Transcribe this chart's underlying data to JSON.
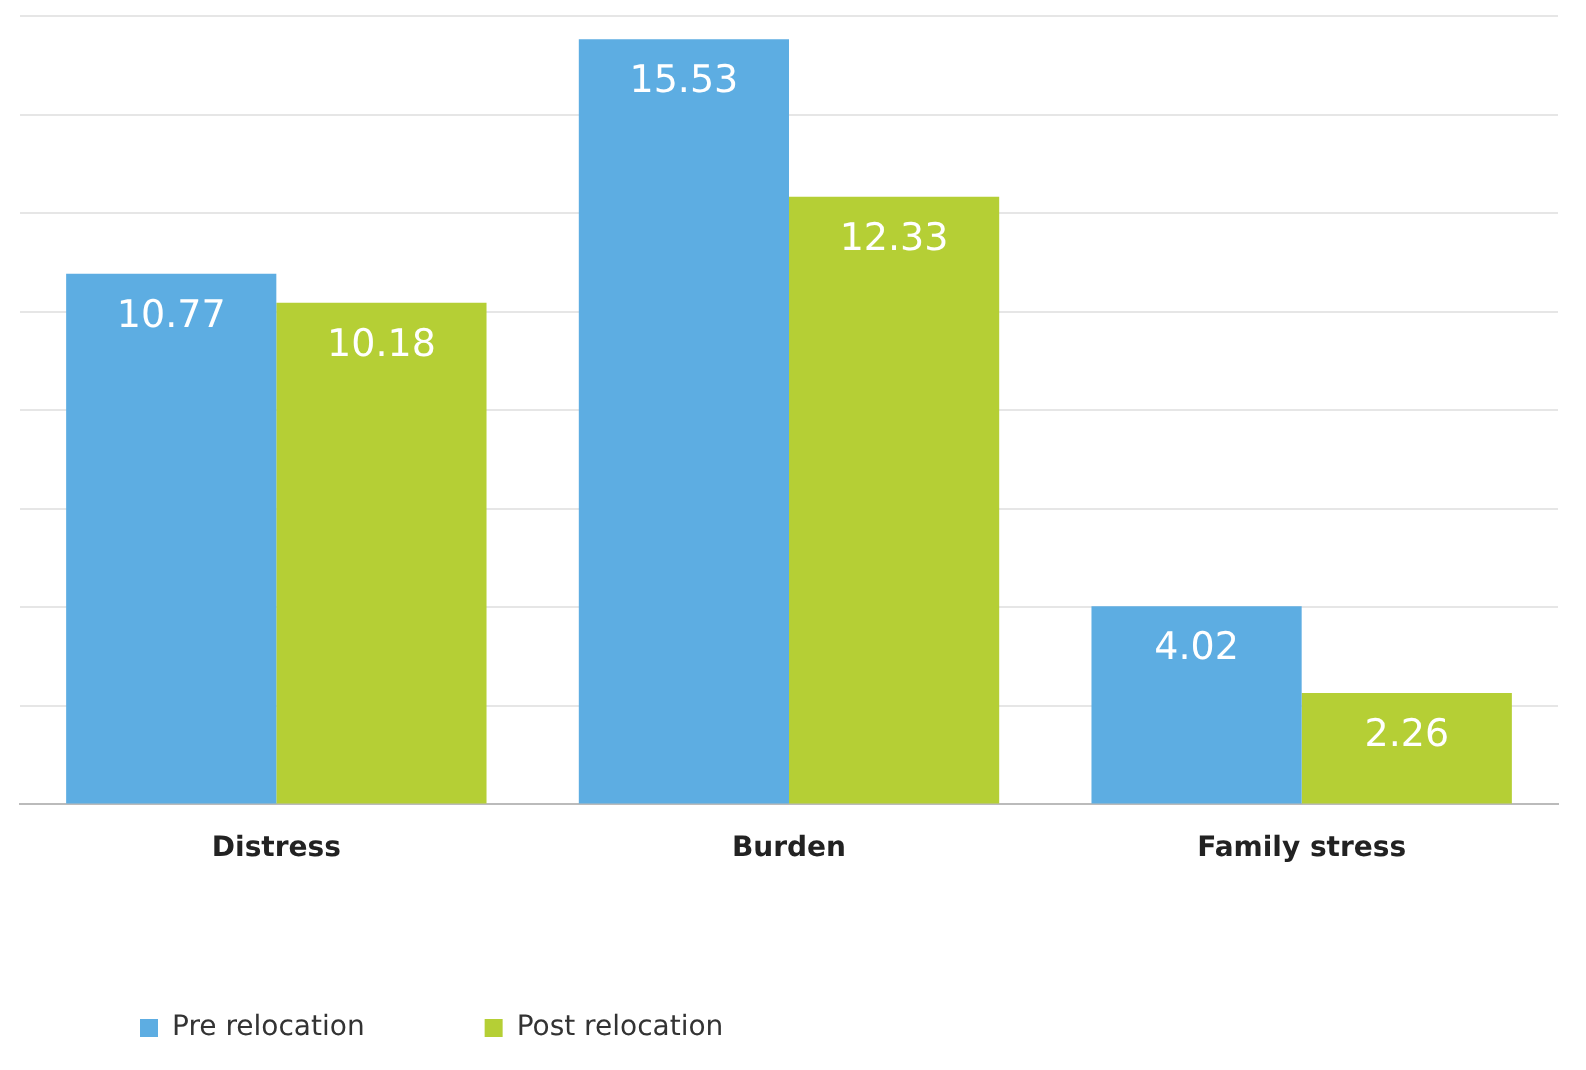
{
  "chart_data": {
    "type": "bar",
    "categories": [
      "Distress",
      "Burden",
      "Family stress"
    ],
    "series": [
      {
        "name": "Pre relocation",
        "color": "#5dade2",
        "values": [
          10.77,
          15.53,
          4.02
        ]
      },
      {
        "name": "Post relocation",
        "color": "#b5cf35",
        "values": [
          10.18,
          12.33,
          2.26
        ]
      }
    ],
    "ylim": [
      0,
      16
    ],
    "yticks": [
      {
        "value": 0,
        "label": null
      },
      {
        "value": 2,
        "label": null
      },
      {
        "value": 4,
        "label": null
      },
      {
        "value": 6,
        "label": null
      },
      {
        "value": 8,
        "label": null
      },
      {
        "value": 10,
        "label": null
      },
      {
        "value": 12,
        "label": null
      },
      {
        "value": 14,
        "label": null
      },
      {
        "value": 16,
        "label": null
      }
    ],
    "grid": "y",
    "legend": "bottom left",
    "data_labels": true
  }
}
